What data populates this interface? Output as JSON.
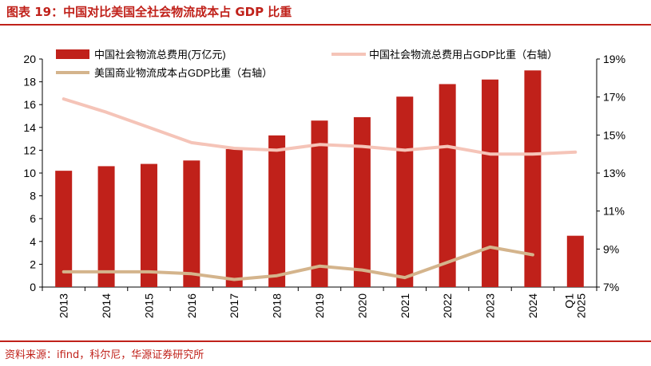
{
  "title": "图表 19：中国对比美国全社会物流成本占 GDP 比重",
  "source": "资料来源：ifind，科尔尼，华源证券研究所",
  "colors": {
    "bars": "#c0211a",
    "china_ratio": "#f5c4b8",
    "us_ratio": "#d4b48c",
    "accent": "#c0211a"
  },
  "chart_data": {
    "type": "bar",
    "categories": [
      "2013",
      "2014",
      "2015",
      "2016",
      "2017",
      "2018",
      "2019",
      "2020",
      "2021",
      "2022",
      "2023",
      "2024",
      "2025Q1"
    ],
    "x_tick_labels": [
      "2013",
      "2014",
      "2015",
      "2016",
      "2017",
      "2018",
      "2019",
      "2020",
      "2021",
      "2022",
      "2023",
      "2024",
      "2025\nQ1"
    ],
    "series": [
      {
        "name": "中国社会物流总费用(万亿元)",
        "type": "bar",
        "axis": "left",
        "values": [
          10.2,
          10.6,
          10.8,
          11.1,
          12.1,
          13.3,
          14.6,
          14.9,
          16.7,
          17.8,
          18.2,
          19.0,
          4.5
        ]
      },
      {
        "name": "中国社会物流总费用占GDP比重（右轴）",
        "type": "line",
        "axis": "right",
        "values": [
          16.9,
          16.2,
          15.4,
          14.6,
          14.3,
          14.2,
          14.5,
          14.4,
          14.2,
          14.4,
          14.0,
          14.0,
          14.1
        ]
      },
      {
        "name": "美国商业物流成本占GDP比重（右轴）",
        "type": "line",
        "axis": "right",
        "values": [
          7.8,
          7.8,
          7.8,
          7.7,
          7.4,
          7.6,
          8.1,
          7.9,
          7.5,
          8.3,
          9.1,
          8.7,
          null
        ]
      }
    ],
    "left_axis": {
      "ylim": [
        0,
        20
      ],
      "ticks": [
        "0",
        "2",
        "4",
        "6",
        "8",
        "10",
        "12",
        "14",
        "16",
        "18",
        "20"
      ]
    },
    "right_axis": {
      "ylim": [
        7,
        19
      ],
      "ticks": [
        "7%",
        "9%",
        "11%",
        "13%",
        "15%",
        "17%",
        "19%"
      ]
    },
    "legend": [
      "中国社会物流总费用(万亿元)",
      "中国社会物流总费用占GDP比重（右轴）",
      "美国商业物流成本占GDP比重（右轴）"
    ],
    "grid": false
  }
}
